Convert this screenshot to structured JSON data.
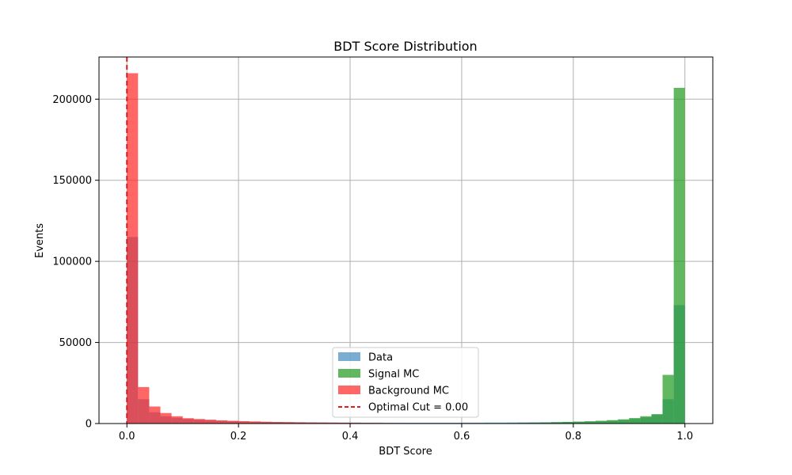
{
  "chart_data": {
    "type": "histogram",
    "title": "BDT Score Distribution",
    "xlabel": "BDT Score",
    "ylabel": "Events",
    "xlim": [
      -0.05,
      1.05
    ],
    "ylim": [
      0,
      226000
    ],
    "grid": true,
    "legend_position": "lower-center",
    "bin_edges_start": 0.0,
    "bin_width": 0.02,
    "x_ticks": [
      {
        "value": 0.0,
        "label": "0.0"
      },
      {
        "value": 0.2,
        "label": "0.2"
      },
      {
        "value": 0.4,
        "label": "0.4"
      },
      {
        "value": 0.6,
        "label": "0.6"
      },
      {
        "value": 0.8,
        "label": "0.8"
      },
      {
        "value": 1.0,
        "label": "1.0"
      }
    ],
    "y_ticks": [
      {
        "value": 0,
        "label": "0"
      },
      {
        "value": 50000,
        "label": "50000"
      },
      {
        "value": 100000,
        "label": "100000"
      },
      {
        "value": 150000,
        "label": "150000"
      },
      {
        "value": 200000,
        "label": "200000"
      }
    ],
    "series": [
      {
        "name": "Data",
        "color": "#1f77b4",
        "opacity": 0.6,
        "values": [
          115000,
          15000,
          7000,
          4500,
          3500,
          2800,
          2300,
          1900,
          1600,
          1400,
          1200,
          1100,
          1000,
          900,
          850,
          800,
          750,
          700,
          650,
          600,
          600,
          550,
          550,
          500,
          500,
          500,
          500,
          500,
          500,
          500,
          550,
          550,
          600,
          600,
          650,
          700,
          750,
          800,
          900,
          1000,
          1100,
          1300,
          1500,
          1800,
          2200,
          2800,
          3800,
          5500,
          15000,
          73000
        ]
      },
      {
        "name": "Signal MC",
        "color": "#2ca02c",
        "opacity": 0.75,
        "values": [
          0,
          0,
          0,
          0,
          0,
          0,
          0,
          0,
          0,
          0,
          0,
          0,
          0,
          0,
          0,
          0,
          0,
          0,
          0,
          0,
          0,
          0,
          0,
          0,
          0,
          0,
          0,
          0,
          0,
          0,
          0,
          0,
          100,
          200,
          300,
          400,
          500,
          600,
          800,
          1000,
          1200,
          1400,
          1700,
          2100,
          2600,
          3400,
          4500,
          5800,
          30000,
          207000
        ]
      },
      {
        "name": "Background MC",
        "color": "#ff2b2b",
        "opacity": 0.72,
        "values": [
          216000,
          22500,
          10500,
          6500,
          4500,
          3300,
          2800,
          2400,
          2000,
          1700,
          1500,
          1300,
          1100,
          950,
          850,
          750,
          650,
          600,
          550,
          500,
          450,
          400,
          350,
          300,
          280,
          260,
          240,
          220,
          200,
          190,
          180,
          170,
          160,
          150,
          140,
          130,
          120,
          110,
          100,
          90,
          80,
          70,
          60,
          50,
          40,
          30,
          20,
          10,
          5,
          0
        ]
      }
    ],
    "cut_line": {
      "label": "Optimal Cut = 0.00",
      "value": 0.0,
      "color": "#e31a1c"
    }
  }
}
